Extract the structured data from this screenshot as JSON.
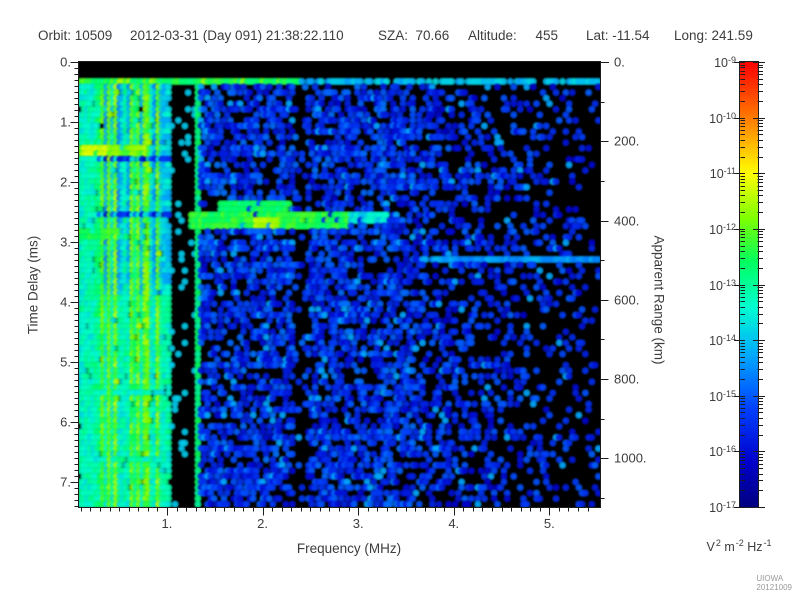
{
  "header": {
    "segments": [
      "Orbit: 10509",
      "2012-03-31 (Day 091) 21:38:22.110",
      "SZA:  70.66",
      "Altitude:     455",
      "Lat: -11.54",
      "Long: 241.59"
    ]
  },
  "footer": {
    "credit": "UIOWA 20121009"
  },
  "chart_data": {
    "type": "heatmap",
    "subtype": "radar-sounder-ionogram-spectrogram",
    "background_color": "#000000",
    "seed": 7,
    "x_axis": {
      "label": "Frequency (MHz)",
      "min": 0.08,
      "max": 5.53,
      "major_ticks": [
        1,
        2,
        3,
        4,
        5
      ],
      "major_tick_labels": [
        "1.",
        "2.",
        "3.",
        "4.",
        "5."
      ],
      "minor_step": 0.1
    },
    "y_axis": {
      "label": "Time Delay (ms)",
      "min": 0,
      "max": 7.42,
      "direction": "down",
      "major_ticks": [
        0,
        1,
        2,
        3,
        4,
        5,
        6,
        7
      ],
      "major_tick_labels": [
        "0.",
        "1.",
        "2.",
        "3.",
        "4.",
        "5.",
        "6.",
        "7."
      ],
      "minor_step": 0.1
    },
    "y2_axis": {
      "label": "Apparent Range (km)",
      "min": 0,
      "max": 1123,
      "direction": "down",
      "major_ticks": [
        0,
        200,
        400,
        600,
        800,
        1000
      ],
      "major_tick_labels": [
        "0.",
        "200.",
        "400.",
        "600.",
        "800.",
        "1000."
      ],
      "minor_step": 100
    },
    "colorbar": {
      "scale": "log",
      "top_value": "1e-9",
      "bottom_value": "1e-17",
      "tick_exponents": [
        "-9",
        "-10",
        "-11",
        "-12",
        "-13",
        "-14",
        "-15",
        "-16",
        "-17"
      ],
      "unit_parts": [
        {
          "text": "V",
          "sup": "2"
        },
        {
          "text": " m",
          "sup": "-2"
        },
        {
          "text": " Hz",
          "sup": "-1"
        }
      ],
      "stops": [
        {
          "v": 0.0,
          "c": "#000080"
        },
        {
          "v": 0.1,
          "c": "#0000cc"
        },
        {
          "v": 0.22,
          "c": "#0040ff"
        },
        {
          "v": 0.34,
          "c": "#00a8ff"
        },
        {
          "v": 0.45,
          "c": "#00ffd0"
        },
        {
          "v": 0.55,
          "c": "#00ff60"
        },
        {
          "v": 0.65,
          "c": "#80ff00"
        },
        {
          "v": 0.75,
          "c": "#ffff00"
        },
        {
          "v": 0.87,
          "c": "#ff8000"
        },
        {
          "v": 1.0,
          "c": "#ff0000"
        }
      ]
    },
    "regions": {
      "top_black_band": {
        "t0": 0,
        "t1": 0.25
      },
      "surface_line": {
        "t0": 0.26,
        "t1": 0.41,
        "strong_level": 0.55,
        "strong_fmax": 2.4,
        "weak_level": 0.38
      },
      "low_freq_band": {
        "f0": 0.08,
        "f1": 1.04,
        "base": 0.4,
        "stripe_amp": 0.24,
        "bright_line_f": 0.4,
        "bright_line_level": 0.6
      },
      "quiet_band": {
        "f0": 1.04,
        "f1": 1.29,
        "dot_prob": 0.1,
        "dot_level": 0.38
      },
      "marker_line_f": 1.31,
      "marker_line_level": 0.48,
      "mid_speckle": {
        "f0": 1.29,
        "f1": 3.6,
        "prob": 0.52,
        "lo": 0.11,
        "hi": 0.28,
        "gap_f0": 2.32,
        "gap_f1": 2.48,
        "gap_prob": 0.16
      },
      "high_speckle": {
        "f0": 3.6,
        "f1": 5.53,
        "prob_start": 0.4,
        "prob_end": 0.1,
        "lo": 0.1,
        "hi": 0.26
      }
    },
    "features": [
      {
        "name": "low-freq-bright-blob-1",
        "f0": 0.08,
        "f1": 0.75,
        "t0": 1.4,
        "t1": 1.57,
        "lo": 0.58,
        "hi": 0.68
      },
      {
        "name": "low-freq-bright-blob-1-core",
        "f0": 0.1,
        "f1": 0.4,
        "t0": 1.42,
        "t1": 1.55,
        "lo": 0.68,
        "hi": 0.74
      },
      {
        "name": "low-freq-bright-blob-2",
        "f0": 0.08,
        "f1": 0.52,
        "t0": 2.8,
        "t1": 2.97,
        "lo": 0.52,
        "hi": 0.6
      },
      {
        "name": "ionosphere-echo-upper",
        "f0": 1.55,
        "f1": 2.3,
        "t0": 2.33,
        "t1": 2.52,
        "lo": 0.5,
        "hi": 0.58
      },
      {
        "name": "ionosphere-echo-main",
        "f0": 1.25,
        "f1": 2.9,
        "t0": 2.55,
        "t1": 2.78,
        "lo": 0.52,
        "hi": 0.62
      },
      {
        "name": "ionosphere-echo-bright-spot",
        "f0": 1.92,
        "f1": 2.18,
        "t0": 2.58,
        "t1": 2.74,
        "lo": 0.66,
        "hi": 0.72
      },
      {
        "name": "ionosphere-echo-tail",
        "f0": 2.9,
        "f1": 3.3,
        "t0": 2.5,
        "t1": 2.7,
        "lo": 0.36,
        "hi": 0.46
      },
      {
        "name": "faint-horizontal-streak",
        "f0": 3.7,
        "f1": 5.53,
        "t0": 3.2,
        "t1": 3.33,
        "lo": 0.28,
        "hi": 0.36
      }
    ]
  }
}
